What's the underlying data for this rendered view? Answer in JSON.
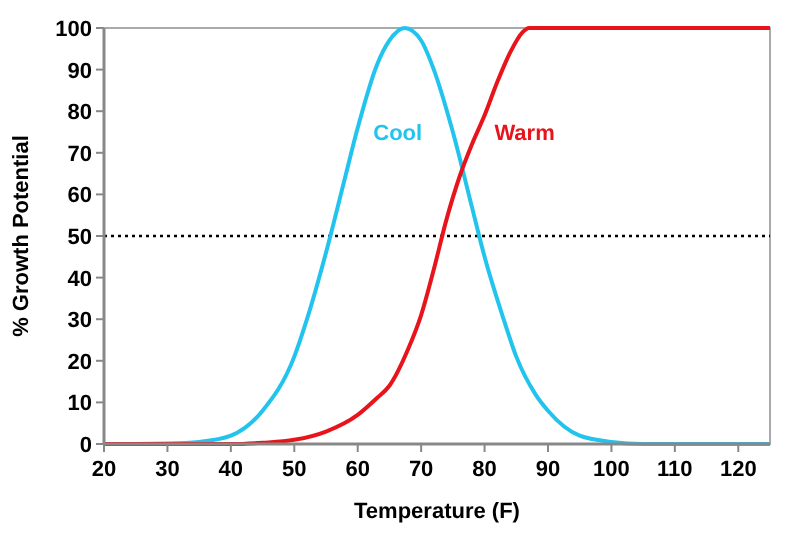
{
  "chart_data": {
    "type": "line",
    "xlabel": "Temperature (F)",
    "ylabel": "% Growth Potential",
    "xlim": [
      20,
      125
    ],
    "xticks": [
      20,
      30,
      40,
      50,
      60,
      70,
      80,
      90,
      100,
      110,
      120
    ],
    "ylim": [
      0,
      100
    ],
    "yticks": [
      0,
      10,
      20,
      30,
      40,
      50,
      60,
      70,
      80,
      90,
      100
    ],
    "grid": false,
    "marker": "none",
    "line_style": "solid",
    "ref_lines": [
      {
        "axis": "y",
        "value": 50,
        "color": "#000000",
        "line_style": "dotted"
      }
    ],
    "series": [
      {
        "name": "Cool",
        "color": "#22c4ee",
        "x": [
          20,
          25,
          30,
          35,
          40,
          45,
          50,
          52,
          55,
          58,
          60,
          63,
          65,
          67.4,
          70,
          72,
          75,
          78,
          80,
          83,
          85,
          88,
          90,
          95,
          100,
          105,
          125
        ],
        "values": [
          0,
          0,
          0.1,
          0.5,
          2,
          8,
          21,
          30,
          46,
          64,
          76,
          91,
          97,
          100,
          97,
          90,
          75,
          57,
          45,
          30,
          21,
          12,
          8,
          2,
          0.5,
          0,
          0
        ]
      },
      {
        "name": "Warm",
        "color": "#e8141b",
        "x": [
          20,
          40,
          45,
          50,
          55,
          60,
          63,
          65,
          68,
          70,
          72,
          74,
          76,
          78,
          80,
          82,
          84,
          86,
          87,
          125
        ],
        "values": [
          0,
          0,
          0.3,
          1,
          3,
          7,
          11,
          14,
          23,
          31,
          42,
          54,
          64,
          72,
          79,
          87,
          94,
          99,
          100,
          100
        ]
      }
    ]
  }
}
